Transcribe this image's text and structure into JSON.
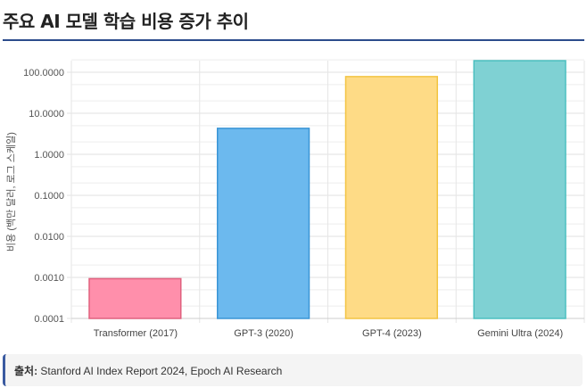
{
  "title": "주요 AI 모델 학습 비용 증가 추이",
  "chart_data": {
    "type": "bar",
    "title": "주요 AI 모델 학습 비용 증가 추이",
    "categories": [
      "Transformer (2017)",
      "GPT-3 (2020)",
      "GPT-4 (2023)",
      "Gemini Ultra (2024)"
    ],
    "values": [
      0.00093,
      4.3,
      78.4,
      191.4
    ],
    "colors": [
      {
        "fill": "#ff8fab",
        "stroke": "#e0607e"
      },
      {
        "fill": "#6cb9ee",
        "stroke": "#3a95d6"
      },
      {
        "fill": "#fedb86",
        "stroke": "#f2c443"
      },
      {
        "fill": "#7fd1d3",
        "stroke": "#4bbfc0"
      }
    ],
    "xlabel": "",
    "ylabel": "비용 (백만 달러, 로그 스케일)",
    "yscale": "log",
    "ylim": [
      0.0001,
      200
    ],
    "yticks": [
      "0.0001",
      "0.0010",
      "0.0100",
      "0.1000",
      "1.0000",
      "10.0000",
      "100.0000"
    ],
    "grid": true
  },
  "source": {
    "label": "출처:",
    "text": "Stanford AI Index Report 2024, Epoch AI Research"
  }
}
